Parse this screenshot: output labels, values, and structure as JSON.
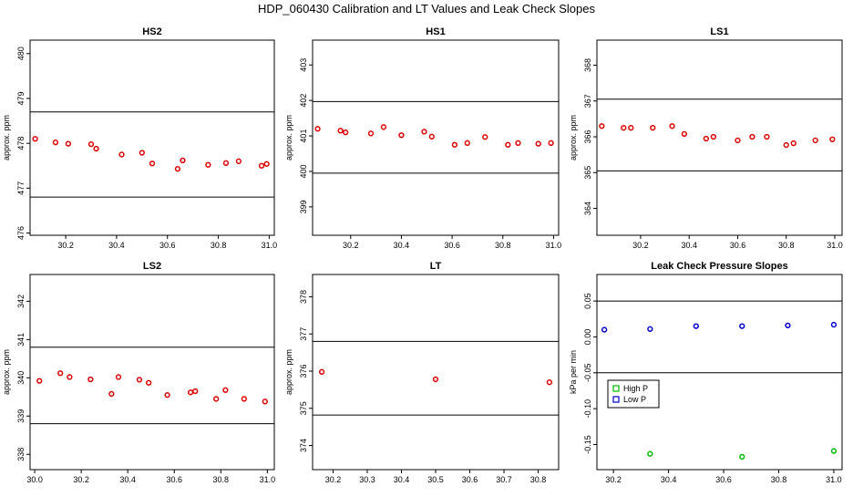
{
  "page_title": "HDP_060430  Calibration and LT Values and Leak Check Slopes",
  "colors": {
    "red": "#dd0000",
    "green": "#00bb00",
    "blue": "#0000cc",
    "axis": "#000000"
  },
  "chart_data": [
    {
      "id": "hs2",
      "type": "scatter",
      "title": "HS2",
      "ylabel": "approx. ppm",
      "xlabel": "",
      "xlim": [
        30.06,
        31.02
      ],
      "ylim": [
        475.95,
        480.3
      ],
      "xticks": [
        30.2,
        30.4,
        30.6,
        30.8,
        31.0
      ],
      "xtick_labels": [
        "30.2",
        "30.4",
        "30.6",
        "30.8",
        "31.0"
      ],
      "yticks": [
        476,
        477,
        478,
        479,
        480
      ],
      "ytick_labels": [
        "476",
        "477",
        "478",
        "479",
        "480"
      ],
      "hlines": [
        478.7,
        476.8
      ],
      "series": [
        {
          "color": "red",
          "x": [
            30.08,
            30.16,
            30.21,
            30.3,
            30.32,
            30.42,
            30.5,
            30.54,
            30.64,
            30.66,
            30.76,
            30.83,
            30.88,
            30.97,
            30.99
          ],
          "y": [
            478.1,
            478.02,
            477.99,
            477.98,
            477.88,
            477.75,
            477.79,
            477.55,
            477.43,
            477.62,
            477.52,
            477.56,
            477.6,
            477.5,
            477.54
          ]
        }
      ]
    },
    {
      "id": "hs1",
      "type": "scatter",
      "title": "HS1",
      "ylabel": "approx. ppm",
      "xlabel": "",
      "xlim": [
        30.05,
        31.02
      ],
      "ylim": [
        398.2,
        403.7
      ],
      "xticks": [
        30.2,
        30.4,
        30.6,
        30.8,
        31.0
      ],
      "xtick_labels": [
        "30.2",
        "30.4",
        "30.6",
        "30.8",
        "31.0"
      ],
      "yticks": [
        399,
        400,
        401,
        402,
        403
      ],
      "ytick_labels": [
        "399",
        "400",
        "401",
        "402",
        "403"
      ],
      "hlines": [
        401.97,
        399.95
      ],
      "series": [
        {
          "color": "red",
          "x": [
            30.07,
            30.16,
            30.18,
            30.28,
            30.33,
            30.4,
            30.49,
            30.52,
            30.61,
            30.66,
            30.73,
            30.82,
            30.86,
            30.94,
            30.99
          ],
          "y": [
            401.2,
            401.15,
            401.1,
            401.07,
            401.25,
            401.02,
            401.12,
            400.98,
            400.75,
            400.8,
            400.97,
            400.75,
            400.8,
            400.78,
            400.8
          ]
        }
      ]
    },
    {
      "id": "ls1",
      "type": "scatter",
      "title": "LS1",
      "ylabel": "approx. ppm",
      "xlabel": "",
      "xlim": [
        30.02,
        31.03
      ],
      "ylim": [
        363.25,
        368.7
      ],
      "xticks": [
        30.2,
        30.4,
        30.6,
        30.8,
        31.0
      ],
      "xtick_labels": [
        "30.2",
        "30.4",
        "30.6",
        "30.8",
        "31.0"
      ],
      "yticks": [
        364,
        365,
        366,
        367,
        368
      ],
      "ytick_labels": [
        "364",
        "365",
        "366",
        "367",
        "368"
      ],
      "hlines": [
        367.05,
        365.05
      ],
      "series": [
        {
          "color": "red",
          "x": [
            30.04,
            30.13,
            30.16,
            30.25,
            30.33,
            30.38,
            30.47,
            30.5,
            30.6,
            30.66,
            30.72,
            30.8,
            30.83,
            30.92,
            30.99
          ],
          "y": [
            366.3,
            366.25,
            366.25,
            366.25,
            366.3,
            366.08,
            365.95,
            366.0,
            365.9,
            366.0,
            366.0,
            365.77,
            365.82,
            365.9,
            365.93
          ]
        }
      ]
    },
    {
      "id": "ls2",
      "type": "scatter",
      "title": "LS2",
      "ylabel": "approx. ppm",
      "xlabel": "",
      "xlim": [
        29.98,
        31.03
      ],
      "ylim": [
        337.6,
        342.7
      ],
      "xticks": [
        30.0,
        30.2,
        30.4,
        30.6,
        30.8,
        31.0
      ],
      "xtick_labels": [
        "30.0",
        "30.2",
        "30.4",
        "30.6",
        "30.8",
        "31.0"
      ],
      "yticks": [
        338,
        339,
        340,
        341,
        342
      ],
      "ytick_labels": [
        "338",
        "339",
        "340",
        "341",
        "342"
      ],
      "hlines": [
        340.8,
        338.8
      ],
      "series": [
        {
          "color": "red",
          "x": [
            30.02,
            30.11,
            30.15,
            30.24,
            30.33,
            30.36,
            30.45,
            30.49,
            30.57,
            30.67,
            30.69,
            30.78,
            30.82,
            30.9,
            30.99
          ],
          "y": [
            339.92,
            340.12,
            340.02,
            339.96,
            339.58,
            340.02,
            339.95,
            339.87,
            339.55,
            339.62,
            339.65,
            339.45,
            339.68,
            339.45,
            339.38
          ]
        }
      ]
    },
    {
      "id": "lt",
      "type": "scatter",
      "title": "LT",
      "ylabel": "approx. ppm",
      "xlabel": "",
      "xlim": [
        30.14,
        30.86
      ],
      "ylim": [
        373.35,
        378.6
      ],
      "xticks": [
        30.2,
        30.3,
        30.4,
        30.5,
        30.6,
        30.7,
        30.8
      ],
      "xtick_labels": [
        "30.2",
        "30.3",
        "30.4",
        "30.5",
        "30.6",
        "30.7",
        "30.8"
      ],
      "yticks": [
        374,
        375,
        376,
        377,
        378
      ],
      "ytick_labels": [
        "374",
        "375",
        "376",
        "377",
        "378"
      ],
      "hlines": [
        376.8,
        374.82
      ],
      "series": [
        {
          "color": "red",
          "x": [
            30.167,
            30.5,
            30.833
          ],
          "y": [
            375.98,
            375.78,
            375.7
          ]
        }
      ]
    },
    {
      "id": "leak",
      "type": "scatter",
      "title": "Leak Check Pressure Slopes",
      "ylabel": "kPa per min",
      "xlabel": "",
      "xlim": [
        30.14,
        31.03
      ],
      "ylim": [
        -0.185,
        0.087
      ],
      "xticks": [
        30.2,
        30.4,
        30.6,
        30.8,
        31.0
      ],
      "xtick_labels": [
        "30.2",
        "30.4",
        "30.6",
        "30.8",
        "31.0"
      ],
      "yticks": [
        -0.15,
        -0.1,
        -0.05,
        0.0,
        0.05
      ],
      "ytick_labels": [
        "-0.15",
        "-0.10",
        "-0.05",
        "0.00",
        "0.05"
      ],
      "hlines": [
        0.05,
        -0.05
      ],
      "legend": {
        "position": "center-left",
        "entries": [
          {
            "label": "High P",
            "color": "green"
          },
          {
            "label": "Low P",
            "color": "blue"
          }
        ]
      },
      "series": [
        {
          "name": "High P",
          "color": "green",
          "x": [
            30.333,
            30.667,
            31.0
          ],
          "y": [
            -0.163,
            -0.167,
            -0.159
          ]
        },
        {
          "name": "Low P",
          "color": "blue",
          "x": [
            30.167,
            30.333,
            30.5,
            30.667,
            30.833,
            31.0
          ],
          "y": [
            0.01,
            0.011,
            0.015,
            0.015,
            0.016,
            0.017
          ]
        }
      ]
    }
  ]
}
